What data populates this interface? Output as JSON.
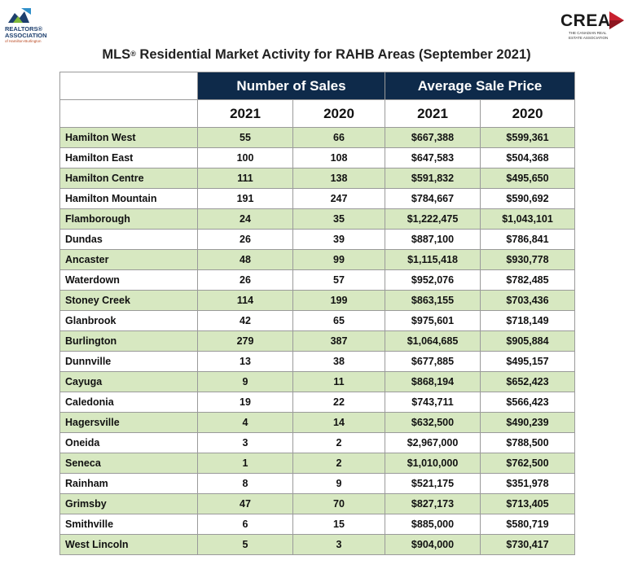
{
  "logos": {
    "left": {
      "line1": "REALTORS®",
      "line2": "ASSOCIATION",
      "line3": "of Hamilton-Burlington"
    },
    "right": {
      "brand": "CREA",
      "line1": "THE CANADIAN REAL",
      "line2": "ESTATE ASSOCIATION"
    }
  },
  "title": {
    "prefix": "MLS",
    "reg": "®",
    "rest": " Residential Market Activity for RAHB Areas (September 2021)"
  },
  "table": {
    "group_headers": {
      "sales": "Number of Sales",
      "price": "Average Sale Price"
    },
    "year_headers": [
      "2021",
      "2020",
      "2021",
      "2020"
    ],
    "rows": [
      {
        "area": "Hamilton West",
        "sales_2021": "55",
        "sales_2020": "66",
        "price_2021": "$667,388",
        "price_2020": "$599,361"
      },
      {
        "area": "Hamilton East",
        "sales_2021": "100",
        "sales_2020": "108",
        "price_2021": "$647,583",
        "price_2020": "$504,368"
      },
      {
        "area": "Hamilton Centre",
        "sales_2021": "111",
        "sales_2020": "138",
        "price_2021": "$591,832",
        "price_2020": "$495,650"
      },
      {
        "area": "Hamilton Mountain",
        "sales_2021": "191",
        "sales_2020": "247",
        "price_2021": "$784,667",
        "price_2020": "$590,692"
      },
      {
        "area": "Flamborough",
        "sales_2021": "24",
        "sales_2020": "35",
        "price_2021": "$1,222,475",
        "price_2020": "$1,043,101"
      },
      {
        "area": "Dundas",
        "sales_2021": "26",
        "sales_2020": "39",
        "price_2021": "$887,100",
        "price_2020": "$786,841"
      },
      {
        "area": "Ancaster",
        "sales_2021": "48",
        "sales_2020": "99",
        "price_2021": "$1,115,418",
        "price_2020": "$930,778"
      },
      {
        "area": "Waterdown",
        "sales_2021": "26",
        "sales_2020": "57",
        "price_2021": "$952,076",
        "price_2020": "$782,485"
      },
      {
        "area": "Stoney Creek",
        "sales_2021": "114",
        "sales_2020": "199",
        "price_2021": "$863,155",
        "price_2020": "$703,436"
      },
      {
        "area": "Glanbrook",
        "sales_2021": "42",
        "sales_2020": "65",
        "price_2021": "$975,601",
        "price_2020": "$718,149"
      },
      {
        "area": "Burlington",
        "sales_2021": "279",
        "sales_2020": "387",
        "price_2021": "$1,064,685",
        "price_2020": "$905,884"
      },
      {
        "area": "Dunnville",
        "sales_2021": "13",
        "sales_2020": "38",
        "price_2021": "$677,885",
        "price_2020": "$495,157"
      },
      {
        "area": "Cayuga",
        "sales_2021": "9",
        "sales_2020": "11",
        "price_2021": "$868,194",
        "price_2020": "$652,423"
      },
      {
        "area": "Caledonia",
        "sales_2021": "19",
        "sales_2020": "22",
        "price_2021": "$743,711",
        "price_2020": "$566,423"
      },
      {
        "area": "Hagersville",
        "sales_2021": "4",
        "sales_2020": "14",
        "price_2021": "$632,500",
        "price_2020": "$490,239"
      },
      {
        "area": "Oneida",
        "sales_2021": "3",
        "sales_2020": "2",
        "price_2021": "$2,967,000",
        "price_2020": "$788,500"
      },
      {
        "area": "Seneca",
        "sales_2021": "1",
        "sales_2020": "2",
        "price_2021": "$1,010,000",
        "price_2020": "$762,500"
      },
      {
        "area": "Rainham",
        "sales_2021": "8",
        "sales_2020": "9",
        "price_2021": "$521,175",
        "price_2020": "$351,978"
      },
      {
        "area": "Grimsby",
        "sales_2021": "47",
        "sales_2020": "70",
        "price_2021": "$827,173",
        "price_2020": "$713,405"
      },
      {
        "area": "Smithville",
        "sales_2021": "6",
        "sales_2020": "15",
        "price_2021": "$885,000",
        "price_2020": "$580,719"
      },
      {
        "area": "West Lincoln",
        "sales_2021": "5",
        "sales_2020": "3",
        "price_2021": "$904,000",
        "price_2020": "$730,417"
      }
    ]
  },
  "colors": {
    "header_navy": "#0e2a4a",
    "row_green": "#d7e8c1",
    "logo_blue": "#1d3f6e",
    "crea_red": "#c8202f"
  },
  "icons": {
    "left_logo": "realtors-association-logo",
    "right_logo": "crea-arrow-logo"
  }
}
